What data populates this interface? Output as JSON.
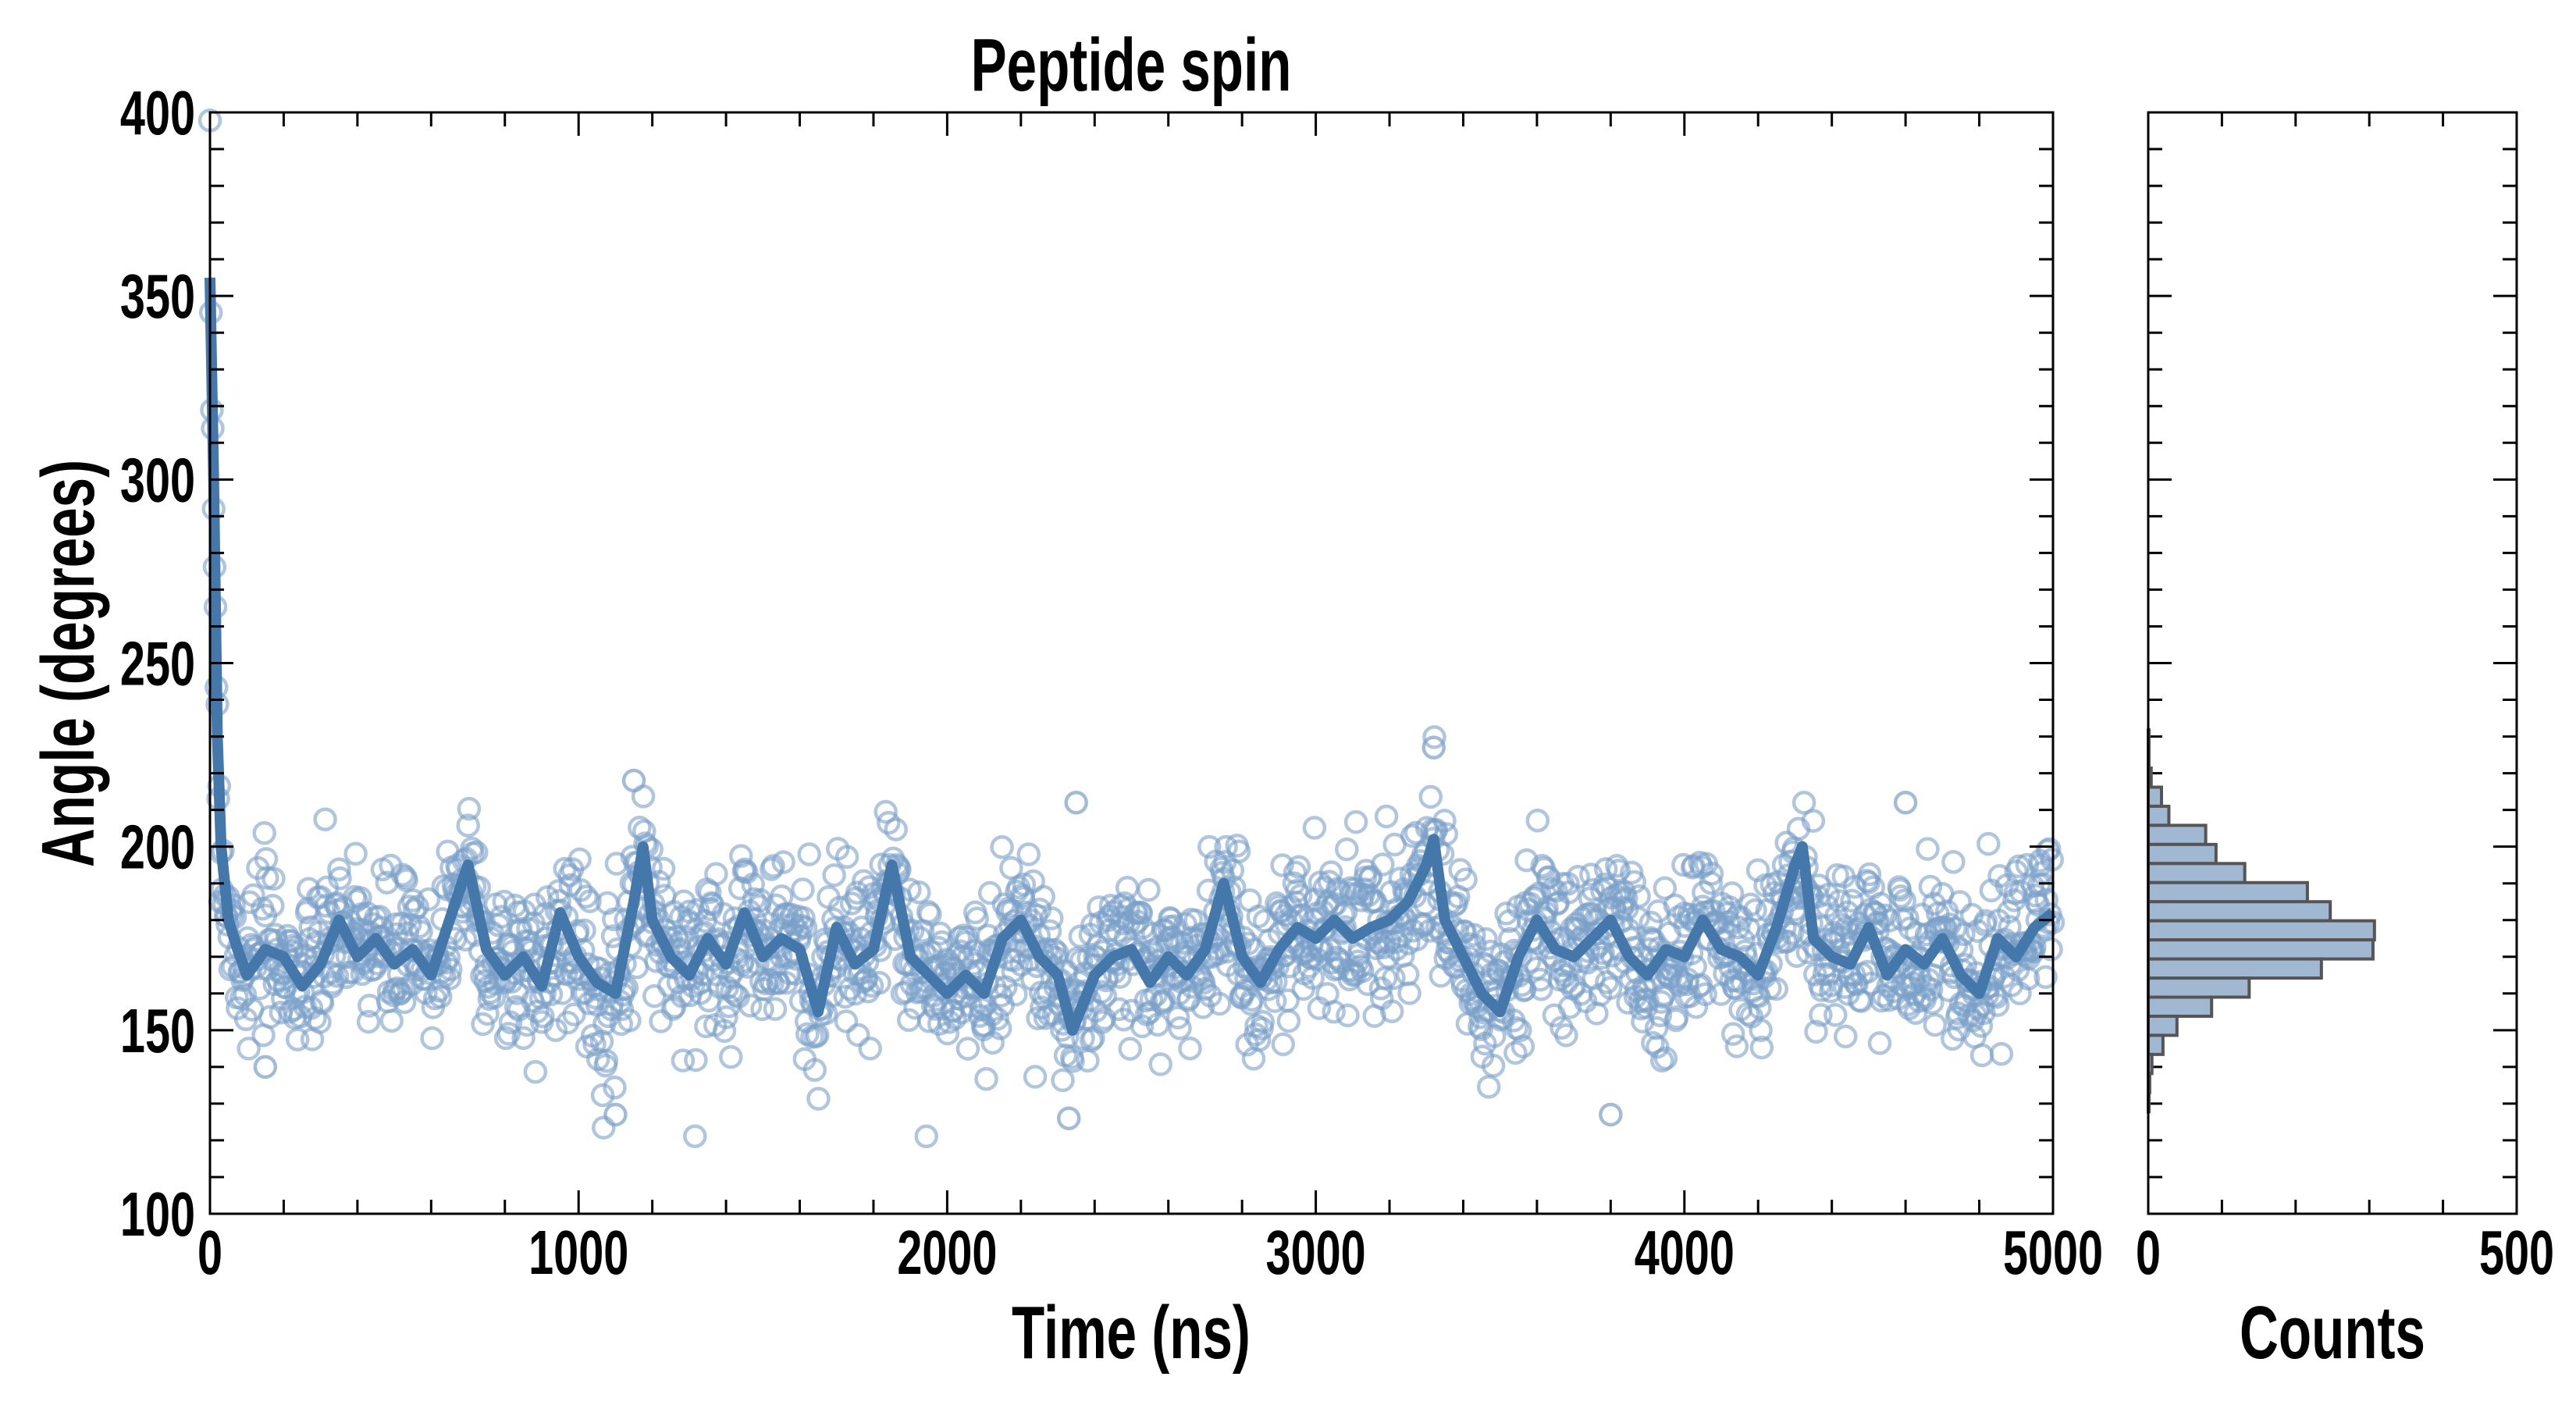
{
  "chart_data": [
    {
      "type": "scatter",
      "title": "Peptide spin",
      "xlabel": "Time (ns)",
      "ylabel": "Angle (degrees)",
      "xlim": [
        0,
        5000
      ],
      "ylim": [
        100,
        400
      ],
      "xticks": [
        "0",
        "1000",
        "2000",
        "3000",
        "4000",
        "5000"
      ],
      "yticks": [
        "100",
        "150",
        "200",
        "250",
        "300",
        "350",
        "400"
      ],
      "x_minor_step": 200,
      "y_minor_step": 10,
      "grid": false,
      "colors": {
        "points": "#7aa0c8",
        "line": "#4477aa"
      },
      "scatter": {
        "n_points": 2000,
        "noise_sd": 11,
        "seed": 7,
        "outliers": [
          [
            1100,
            127
          ],
          [
            2330,
            126
          ],
          [
            3800,
            127
          ],
          [
            3320,
            227
          ],
          [
            2350,
            212
          ],
          [
            1150,
            218
          ],
          [
            4600,
            212
          ],
          [
            150,
            140
          ]
        ]
      },
      "smoothed_line": {
        "t": [
          0,
          10,
          20,
          30,
          50,
          75,
          100,
          150,
          200,
          250,
          300,
          350,
          400,
          450,
          500,
          550,
          600,
          650,
          700,
          750,
          800,
          850,
          900,
          950,
          1000,
          1050,
          1100,
          1150,
          1175,
          1200,
          1250,
          1300,
          1350,
          1400,
          1450,
          1500,
          1550,
          1600,
          1650,
          1700,
          1750,
          1800,
          1850,
          1900,
          1950,
          2000,
          2050,
          2100,
          2150,
          2200,
          2250,
          2300,
          2340,
          2400,
          2450,
          2500,
          2550,
          2600,
          2650,
          2700,
          2750,
          2800,
          2850,
          2900,
          2950,
          3000,
          3050,
          3100,
          3150,
          3200,
          3250,
          3300,
          3320,
          3350,
          3400,
          3450,
          3500,
          3550,
          3600,
          3650,
          3700,
          3750,
          3800,
          3850,
          3900,
          3950,
          4000,
          4050,
          4100,
          4150,
          4200,
          4250,
          4300,
          4320,
          4350,
          4400,
          4450,
          4500,
          4550,
          4600,
          4650,
          4700,
          4750,
          4800,
          4850,
          4900,
          4950,
          5000
        ],
        "angle": [
          355,
          300,
          230,
          200,
          180,
          172,
          165,
          172,
          170,
          162,
          168,
          180,
          170,
          175,
          168,
          172,
          165,
          180,
          195,
          172,
          165,
          170,
          162,
          182,
          170,
          163,
          160,
          185,
          200,
          180,
          170,
          165,
          175,
          168,
          182,
          170,
          175,
          172,
          155,
          178,
          168,
          172,
          195,
          170,
          165,
          160,
          165,
          160,
          175,
          180,
          170,
          165,
          150,
          165,
          170,
          172,
          163,
          170,
          165,
          172,
          190,
          170,
          163,
          172,
          178,
          175,
          180,
          175,
          178,
          180,
          185,
          195,
          202,
          180,
          170,
          160,
          155,
          170,
          180,
          172,
          170,
          175,
          180,
          170,
          165,
          172,
          170,
          180,
          172,
          170,
          165,
          178,
          195,
          200,
          175,
          170,
          168,
          178,
          165,
          172,
          168,
          175,
          165,
          160,
          175,
          170,
          178,
          182
        ]
      }
    },
    {
      "type": "bar",
      "orientation": "horizontal",
      "xlabel": "Counts",
      "xlim": [
        0,
        500
      ],
      "xticks": [
        "0",
        "500"
      ],
      "x_minor_step": 100,
      "ylim": [
        100,
        400
      ],
      "colors": {
        "fill": "#a0b8d2",
        "edge": "#555555"
      },
      "bin_low_edges": [
        226.6,
        221.4,
        216.2,
        211.0,
        205.8,
        200.6,
        195.4,
        190.2,
        185.0,
        179.8,
        174.6,
        169.4,
        164.2,
        159.0,
        153.8,
        148.6,
        143.4,
        138.2,
        133.0,
        127.8
      ],
      "bin_width": 5.2,
      "counts": [
        1,
        1,
        4,
        18,
        28,
        78,
        92,
        131,
        216,
        247,
        307,
        305,
        235,
        137,
        86,
        39,
        20,
        5,
        2,
        1
      ]
    }
  ]
}
